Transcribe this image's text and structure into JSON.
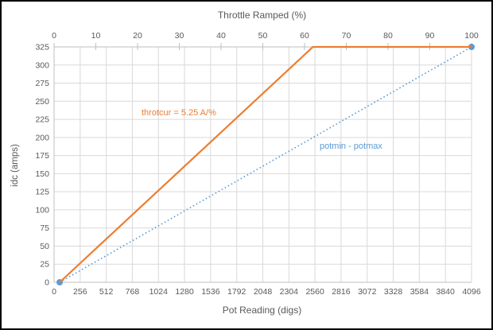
{
  "figure": {
    "top_axis_title": "Throttle Ramped (%)",
    "bottom_axis_title": "Pot Reading (digs)",
    "left_axis_title": "idc (amps)"
  },
  "chart_data": {
    "type": "line",
    "title": "",
    "grid": true,
    "x_axis_bottom": {
      "label": "Pot Reading (digs)",
      "min": 0,
      "max": 4096,
      "ticks": [
        0,
        256,
        512,
        768,
        1024,
        1280,
        1536,
        1792,
        2048,
        2304,
        2560,
        2816,
        3072,
        3328,
        3584,
        3840,
        4096
      ]
    },
    "x_axis_top": {
      "label": "Throttle Ramped (%)",
      "min": 0,
      "max": 100,
      "ticks": [
        0,
        10,
        20,
        30,
        40,
        50,
        60,
        70,
        80,
        90,
        100
      ]
    },
    "y_axis": {
      "label": "idc (amps)",
      "min": 0,
      "max": 325,
      "ticks": [
        0,
        25,
        50,
        75,
        100,
        125,
        150,
        175,
        200,
        225,
        250,
        275,
        300,
        325
      ]
    },
    "series": [
      {
        "name": "throtcur",
        "annotation": "throtcur = 5.25 A/%",
        "color": "#ED7D31",
        "line_style": "solid",
        "markers": false,
        "points": [
          [
            55,
            0
          ],
          [
            2540,
            325
          ],
          [
            4096,
            325
          ]
        ]
      },
      {
        "name": "potmin-potmax",
        "annotation": "potmin - potmax",
        "color": "#5B9BD5",
        "line_style": "dotted",
        "markers": true,
        "points": [
          [
            55,
            0
          ],
          [
            4096,
            325
          ]
        ]
      }
    ],
    "colors": {
      "grid": "#D9D9D9",
      "axis": "#BFBFBF",
      "tick_text": "#595959",
      "marker": "#5B9BD5"
    }
  }
}
